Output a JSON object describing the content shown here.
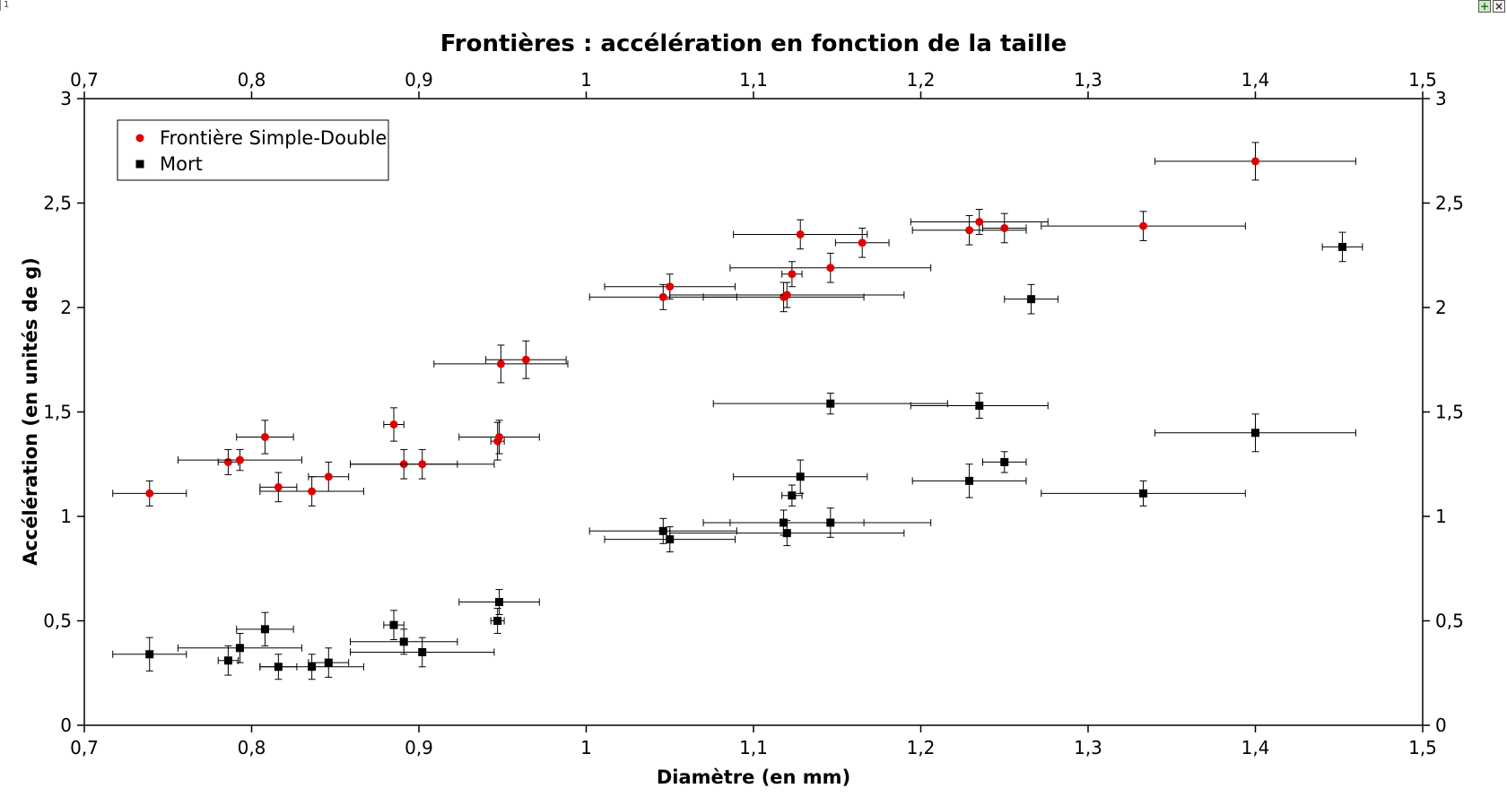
{
  "window": {
    "corner_label": "1",
    "buttons": [
      {
        "name": "plus-icon",
        "symbol": "+"
      },
      {
        "name": "close-icon",
        "symbol": "×"
      }
    ]
  },
  "chart_data": {
    "type": "scatter",
    "title": "Frontières : accélération en fonction de la taille",
    "xlabel": "Diamètre (en mm)",
    "ylabel": "Accélération (en unités de g)",
    "xlim": [
      0.7,
      1.5
    ],
    "ylim": [
      0,
      3
    ],
    "xticks": [
      0.7,
      0.8,
      0.9,
      1.0,
      1.1,
      1.2,
      1.3,
      1.4,
      1.5
    ],
    "xtick_labels": [
      "0,7",
      "0,8",
      "0,9",
      "1",
      "1,1",
      "1,2",
      "1,3",
      "1,4",
      "1,5"
    ],
    "yticks": [
      0,
      0.5,
      1.0,
      1.5,
      2.0,
      2.5,
      3.0
    ],
    "ytick_labels": [
      "0",
      "0,5",
      "1",
      "1,5",
      "2",
      "2,5",
      "3"
    ],
    "grid": false,
    "mirrored_axes": true,
    "legend_position": "top-left",
    "series": [
      {
        "name": "Frontière Simple-Double",
        "marker": "circle",
        "color": "#e00000",
        "points": [
          {
            "x": 0.739,
            "y": 1.11,
            "xerr": 0.022,
            "yerr": 0.06
          },
          {
            "x": 0.786,
            "y": 1.26,
            "xerr": 0.006,
            "yerr": 0.06
          },
          {
            "x": 0.793,
            "y": 1.27,
            "xerr": 0.037,
            "yerr": 0.05
          },
          {
            "x": 0.808,
            "y": 1.38,
            "xerr": 0.017,
            "yerr": 0.08
          },
          {
            "x": 0.816,
            "y": 1.14,
            "xerr": 0.011,
            "yerr": 0.07
          },
          {
            "x": 0.836,
            "y": 1.12,
            "xerr": 0.031,
            "yerr": 0.07
          },
          {
            "x": 0.846,
            "y": 1.19,
            "xerr": 0.012,
            "yerr": 0.07
          },
          {
            "x": 0.885,
            "y": 1.44,
            "xerr": 0.006,
            "yerr": 0.08
          },
          {
            "x": 0.891,
            "y": 1.25,
            "xerr": 0.032,
            "yerr": 0.07
          },
          {
            "x": 0.902,
            "y": 1.25,
            "xerr": 0.043,
            "yerr": 0.07
          },
          {
            "x": 0.947,
            "y": 1.36,
            "xerr": 0.004,
            "yerr": 0.09
          },
          {
            "x": 0.948,
            "y": 1.38,
            "xerr": 0.024,
            "yerr": 0.08
          },
          {
            "x": 0.949,
            "y": 1.73,
            "xerr": 0.04,
            "yerr": 0.09
          },
          {
            "x": 0.964,
            "y": 1.75,
            "xerr": 0.024,
            "yerr": 0.09
          },
          {
            "x": 1.046,
            "y": 2.05,
            "xerr": 0.044,
            "yerr": 0.06
          },
          {
            "x": 1.05,
            "y": 2.1,
            "xerr": 0.039,
            "yerr": 0.06
          },
          {
            "x": 1.118,
            "y": 2.05,
            "xerr": 0.048,
            "yerr": 0.07
          },
          {
            "x": 1.12,
            "y": 2.06,
            "xerr": 0.07,
            "yerr": 0.06
          },
          {
            "x": 1.123,
            "y": 2.16,
            "xerr": 0.006,
            "yerr": 0.06
          },
          {
            "x": 1.128,
            "y": 2.35,
            "xerr": 0.04,
            "yerr": 0.07
          },
          {
            "x": 1.146,
            "y": 2.19,
            "xerr": 0.06,
            "yerr": 0.07
          },
          {
            "x": 1.165,
            "y": 2.31,
            "xerr": 0.016,
            "yerr": 0.07
          },
          {
            "x": 1.229,
            "y": 2.37,
            "xerr": 0.034,
            "yerr": 0.07
          },
          {
            "x": 1.235,
            "y": 2.41,
            "xerr": 0.041,
            "yerr": 0.06
          },
          {
            "x": 1.25,
            "y": 2.38,
            "xerr": 0.013,
            "yerr": 0.07
          },
          {
            "x": 1.333,
            "y": 2.39,
            "xerr": 0.061,
            "yerr": 0.07
          },
          {
            "x": 1.4,
            "y": 2.7,
            "xerr": 0.06,
            "yerr": 0.09
          }
        ]
      },
      {
        "name": "Mort",
        "marker": "square",
        "color": "#000000",
        "points": [
          {
            "x": 0.739,
            "y": 0.34,
            "xerr": 0.022,
            "yerr": 0.08
          },
          {
            "x": 0.786,
            "y": 0.31,
            "xerr": 0.006,
            "yerr": 0.07
          },
          {
            "x": 0.793,
            "y": 0.37,
            "xerr": 0.037,
            "yerr": 0.07
          },
          {
            "x": 0.808,
            "y": 0.46,
            "xerr": 0.017,
            "yerr": 0.08
          },
          {
            "x": 0.816,
            "y": 0.28,
            "xerr": 0.011,
            "yerr": 0.06
          },
          {
            "x": 0.836,
            "y": 0.28,
            "xerr": 0.031,
            "yerr": 0.06
          },
          {
            "x": 0.846,
            "y": 0.3,
            "xerr": 0.012,
            "yerr": 0.07
          },
          {
            "x": 0.885,
            "y": 0.48,
            "xerr": 0.006,
            "yerr": 0.07
          },
          {
            "x": 0.891,
            "y": 0.4,
            "xerr": 0.032,
            "yerr": 0.06
          },
          {
            "x": 0.902,
            "y": 0.35,
            "xerr": 0.043,
            "yerr": 0.07
          },
          {
            "x": 0.947,
            "y": 0.5,
            "xerr": 0.004,
            "yerr": 0.06
          },
          {
            "x": 0.948,
            "y": 0.59,
            "xerr": 0.024,
            "yerr": 0.06
          },
          {
            "x": 1.046,
            "y": 0.93,
            "xerr": 0.044,
            "yerr": 0.06
          },
          {
            "x": 1.05,
            "y": 0.89,
            "xerr": 0.039,
            "yerr": 0.06
          },
          {
            "x": 1.118,
            "y": 0.97,
            "xerr": 0.048,
            "yerr": 0.06
          },
          {
            "x": 1.12,
            "y": 0.92,
            "xerr": 0.07,
            "yerr": 0.06
          },
          {
            "x": 1.123,
            "y": 1.1,
            "xerr": 0.006,
            "yerr": 0.05
          },
          {
            "x": 1.128,
            "y": 1.19,
            "xerr": 0.04,
            "yerr": 0.08
          },
          {
            "x": 1.146,
            "y": 0.97,
            "xerr": 0.06,
            "yerr": 0.07
          },
          {
            "x": 1.146,
            "y": 1.54,
            "xerr": 0.07,
            "yerr": 0.05
          },
          {
            "x": 1.229,
            "y": 1.17,
            "xerr": 0.034,
            "yerr": 0.08
          },
          {
            "x": 1.235,
            "y": 1.53,
            "xerr": 0.041,
            "yerr": 0.06
          },
          {
            "x": 1.25,
            "y": 1.26,
            "xerr": 0.013,
            "yerr": 0.05
          },
          {
            "x": 1.266,
            "y": 2.04,
            "xerr": 0.016,
            "yerr": 0.07
          },
          {
            "x": 1.333,
            "y": 1.11,
            "xerr": 0.061,
            "yerr": 0.06
          },
          {
            "x": 1.4,
            "y": 1.4,
            "xerr": 0.06,
            "yerr": 0.09
          },
          {
            "x": 1.452,
            "y": 2.29,
            "xerr": 0.012,
            "yerr": 0.07
          }
        ]
      }
    ]
  }
}
